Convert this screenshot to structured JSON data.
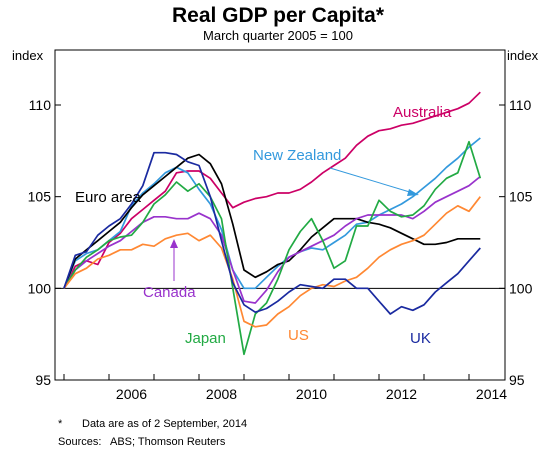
{
  "chart_data": {
    "type": "line",
    "title": "Real GDP per Capita*",
    "subtitle": "March quarter 2005 = 100",
    "ylabel_left": "index",
    "ylabel_right": "index",
    "xlim": [
      2004.8,
      2014.8
    ],
    "ylim": [
      95,
      113
    ],
    "yticks": [
      95,
      100,
      105,
      110
    ],
    "xticks": [
      2006,
      2008,
      2010,
      2012,
      2014
    ],
    "grid": "horizontal reference line at 100",
    "legend": "inline labels",
    "series": [
      {
        "name": "Australia",
        "color": "#cc0066",
        "x": [
          2005.0,
          2005.25,
          2005.5,
          2005.75,
          2006.0,
          2006.25,
          2006.5,
          2006.75,
          2007.0,
          2007.25,
          2007.5,
          2007.75,
          2008.0,
          2008.25,
          2008.5,
          2008.75,
          2009.0,
          2009.25,
          2009.5,
          2009.75,
          2010.0,
          2010.25,
          2010.5,
          2010.75,
          2011.0,
          2011.25,
          2011.5,
          2011.75,
          2012.0,
          2012.25,
          2012.5,
          2012.75,
          2013.0,
          2013.25,
          2013.5,
          2013.75,
          2014.0,
          2014.25
        ],
        "y": [
          100,
          101.2,
          101.5,
          101.3,
          102.5,
          103.0,
          103.8,
          104.3,
          104.8,
          105.3,
          106.3,
          106.4,
          106.4,
          106.0,
          105.2,
          104.4,
          104.7,
          104.9,
          105.0,
          105.2,
          105.2,
          105.4,
          105.8,
          106.3,
          106.7,
          107.1,
          107.8,
          108.3,
          108.6,
          108.7,
          108.9,
          109.0,
          109.2,
          109.4,
          109.6,
          109.8,
          110.1,
          110.7
        ]
      },
      {
        "name": "New Zealand",
        "color": "#3399dd",
        "x": [
          2005.0,
          2005.25,
          2005.5,
          2005.75,
          2006.0,
          2006.25,
          2006.5,
          2006.75,
          2007.0,
          2007.25,
          2007.5,
          2007.75,
          2008.0,
          2008.25,
          2008.5,
          2008.75,
          2009.0,
          2009.25,
          2009.5,
          2009.75,
          2010.0,
          2010.25,
          2010.5,
          2010.75,
          2011.0,
          2011.25,
          2011.5,
          2011.75,
          2012.0,
          2012.25,
          2012.5,
          2012.75,
          2013.0,
          2013.25,
          2013.5,
          2013.75,
          2014.0,
          2014.25
        ],
        "y": [
          100,
          101.5,
          101.9,
          102.1,
          102.6,
          103.1,
          104.5,
          105.2,
          105.7,
          106.3,
          106.6,
          106.3,
          105.4,
          104.6,
          103.2,
          101.0,
          100.0,
          100.0,
          100.6,
          101.2,
          101.7,
          102.0,
          102.2,
          102.1,
          102.5,
          102.9,
          103.5,
          103.6,
          104.0,
          104.3,
          104.6,
          105.0,
          105.5,
          106.0,
          106.6,
          107.1,
          107.7,
          108.2
        ]
      },
      {
        "name": "Euro area",
        "color": "#000000",
        "x": [
          2005.0,
          2005.25,
          2005.5,
          2005.75,
          2006.0,
          2006.25,
          2006.5,
          2006.75,
          2007.0,
          2007.25,
          2007.5,
          2007.75,
          2008.0,
          2008.25,
          2008.5,
          2008.75,
          2009.0,
          2009.25,
          2009.5,
          2009.75,
          2010.0,
          2010.25,
          2010.5,
          2010.75,
          2011.0,
          2011.25,
          2011.5,
          2011.75,
          2012.0,
          2012.25,
          2012.5,
          2012.75,
          2013.0,
          2013.25,
          2013.5,
          2013.75,
          2014.0,
          2014.25
        ],
        "y": [
          100,
          101.6,
          102.1,
          102.6,
          103.1,
          103.6,
          104.4,
          105.1,
          105.6,
          106.1,
          106.6,
          107.1,
          107.3,
          106.8,
          105.7,
          103.5,
          101.0,
          100.6,
          100.9,
          101.3,
          101.5,
          102.1,
          102.8,
          103.3,
          103.8,
          103.8,
          103.8,
          103.6,
          103.5,
          103.3,
          103.0,
          102.7,
          102.4,
          102.4,
          102.5,
          102.7,
          102.7,
          102.7
        ]
      },
      {
        "name": "Canada",
        "color": "#9933cc",
        "x": [
          2005.0,
          2005.25,
          2005.5,
          2005.75,
          2006.0,
          2006.25,
          2006.5,
          2006.75,
          2007.0,
          2007.25,
          2007.5,
          2007.75,
          2008.0,
          2008.25,
          2008.5,
          2008.75,
          2009.0,
          2009.25,
          2009.5,
          2009.75,
          2010.0,
          2010.25,
          2010.5,
          2010.75,
          2011.0,
          2011.25,
          2011.5,
          2011.75,
          2012.0,
          2012.25,
          2012.5,
          2012.75,
          2013.0,
          2013.25,
          2013.5,
          2013.75,
          2014.0,
          2014.25
        ],
        "y": [
          100,
          101.0,
          101.5,
          101.9,
          102.3,
          102.6,
          103.1,
          103.6,
          103.9,
          103.9,
          103.8,
          103.8,
          104.1,
          103.8,
          102.9,
          101.0,
          99.3,
          99.2,
          99.9,
          100.9,
          101.7,
          102.0,
          102.3,
          102.6,
          102.9,
          103.4,
          103.8,
          104.0,
          104.0,
          104.0,
          104.0,
          103.8,
          104.2,
          104.7,
          105.0,
          105.3,
          105.6,
          106.1
        ]
      },
      {
        "name": "Japan",
        "color": "#22aa44",
        "x": [
          2005.0,
          2005.25,
          2005.5,
          2005.75,
          2006.0,
          2006.25,
          2006.5,
          2006.75,
          2007.0,
          2007.25,
          2007.5,
          2007.75,
          2008.0,
          2008.25,
          2008.5,
          2008.75,
          2009.0,
          2009.25,
          2009.5,
          2009.75,
          2010.0,
          2010.25,
          2010.5,
          2010.75,
          2011.0,
          2011.25,
          2011.5,
          2011.75,
          2012.0,
          2012.25,
          2012.5,
          2012.75,
          2013.0,
          2013.25,
          2013.5,
          2013.75,
          2014.0,
          2014.25
        ],
        "y": [
          100,
          101.0,
          101.7,
          102.1,
          102.6,
          102.8,
          102.9,
          103.6,
          104.6,
          105.1,
          105.8,
          105.3,
          105.7,
          105.0,
          103.8,
          100.0,
          96.4,
          98.6,
          99.2,
          100.5,
          102.1,
          103.1,
          103.8,
          102.6,
          101.1,
          101.5,
          103.4,
          103.4,
          104.8,
          104.2,
          103.9,
          104.0,
          104.5,
          105.4,
          106.0,
          106.3,
          108.0,
          106.0
        ]
      },
      {
        "name": "US",
        "color": "#ff8833",
        "x": [
          2005.0,
          2005.25,
          2005.5,
          2005.75,
          2006.0,
          2006.25,
          2006.5,
          2006.75,
          2007.0,
          2007.25,
          2007.5,
          2007.75,
          2008.0,
          2008.25,
          2008.5,
          2008.75,
          2009.0,
          2009.25,
          2009.5,
          2009.75,
          2010.0,
          2010.25,
          2010.5,
          2010.75,
          2011.0,
          2011.25,
          2011.5,
          2011.75,
          2012.0,
          2012.25,
          2012.5,
          2012.75,
          2013.0,
          2013.25,
          2013.5,
          2013.75,
          2014.0,
          2014.25
        ],
        "y": [
          100,
          100.8,
          101.1,
          101.6,
          101.8,
          102.1,
          102.1,
          102.4,
          102.3,
          102.7,
          102.9,
          103.0,
          102.6,
          102.9,
          102.2,
          100.5,
          98.2,
          97.9,
          98.0,
          98.6,
          99.0,
          99.6,
          100.0,
          100.2,
          100.1,
          100.4,
          100.6,
          101.1,
          101.7,
          102.1,
          102.4,
          102.6,
          102.9,
          103.5,
          104.1,
          104.5,
          104.2,
          105.0
        ]
      },
      {
        "name": "UK",
        "color": "#1a2aa0",
        "x": [
          2005.0,
          2005.25,
          2005.5,
          2005.75,
          2006.0,
          2006.25,
          2006.5,
          2006.75,
          2007.0,
          2007.25,
          2007.5,
          2007.75,
          2008.0,
          2008.25,
          2008.5,
          2008.75,
          2009.0,
          2009.25,
          2009.5,
          2009.75,
          2010.0,
          2010.25,
          2010.5,
          2010.75,
          2011.0,
          2011.25,
          2011.5,
          2011.75,
          2012.0,
          2012.25,
          2012.5,
          2012.75,
          2013.0,
          2013.25,
          2013.5,
          2013.75,
          2014.0,
          2014.25
        ],
        "y": [
          100,
          101.8,
          102.0,
          102.9,
          103.4,
          103.8,
          104.6,
          105.6,
          107.4,
          107.4,
          107.3,
          106.9,
          106.7,
          105.0,
          102.6,
          100.3,
          99.1,
          98.7,
          98.9,
          99.3,
          99.8,
          100.2,
          100.1,
          100.0,
          100.5,
          100.5,
          100.0,
          100.0,
          99.3,
          98.6,
          99.0,
          98.8,
          99.1,
          99.8,
          100.3,
          100.8,
          101.5,
          102.2
        ]
      }
    ],
    "labels": [
      "Australia",
      "New Zealand",
      "Euro area",
      "Canada",
      "Japan",
      "US",
      "UK"
    ]
  },
  "notes": {
    "asterisk": "*",
    "data_note": "Data are as of 2 September, 2014",
    "sources_label": "Sources:",
    "sources_text": "ABS; Thomson Reuters"
  }
}
